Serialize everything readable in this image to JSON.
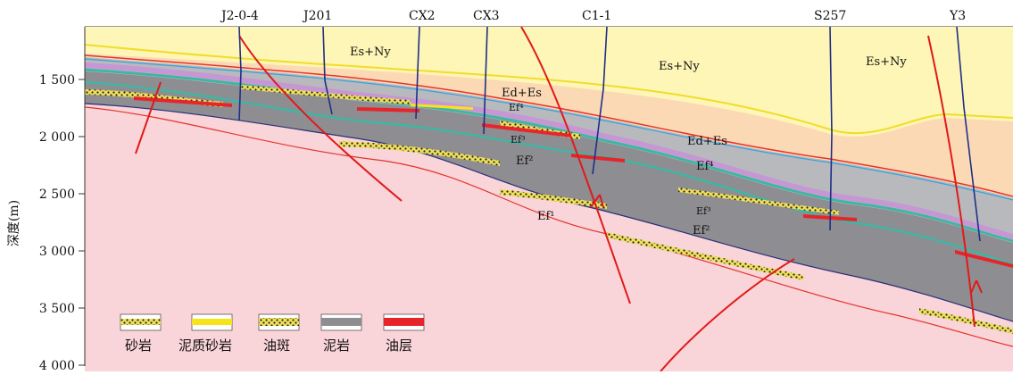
{
  "wells": [
    {
      "id": "w1",
      "label": "J2-0-4"
    },
    {
      "id": "w2",
      "label": "J201"
    },
    {
      "id": "w3",
      "label": "CX2"
    },
    {
      "id": "w4",
      "label": "CX3"
    },
    {
      "id": "w5",
      "label": "C1-1"
    },
    {
      "id": "w6",
      "label": "S257"
    },
    {
      "id": "w7",
      "label": "Y3"
    }
  ],
  "depth_axis": {
    "label": "深度(m)",
    "ticks": [
      "1 500",
      "2 000",
      "2 500",
      "3 000",
      "3 500",
      "4 000"
    ]
  },
  "formations": {
    "es_ny_1": "Es+Ny",
    "es_ny_2": "Es+Ny",
    "es_ny_3": "Es+Ny",
    "ed_es_1": "Ed+Es",
    "ed_es_2": "Ed+Es",
    "ef4_1": "Ef⁴",
    "ef3_1": "Ef³",
    "ef2_1": "Ef²",
    "ef1_1": "Ef¹",
    "ef4_2": "Ef⁴",
    "ef3_2": "Ef³",
    "ef2_2": "Ef²"
  },
  "legend": [
    {
      "id": "sandstone",
      "label": "砂岩"
    },
    {
      "id": "muddy-sandstone",
      "label": "泥质砂岩"
    },
    {
      "id": "oil-spot",
      "label": "油斑"
    },
    {
      "id": "mudstone",
      "label": "泥岩"
    },
    {
      "id": "oil-layer",
      "label": "油层"
    }
  ],
  "colors": {
    "es_ny": "#fdf6b6",
    "ed_es": "#fbd9b5",
    "ef4": "#b8b9bd",
    "ef2": "#8e8d91",
    "ef1": "#f9d4d8",
    "teal": "#3fb6a3",
    "purple": "#c98fd8",
    "fault": "#e01a1a",
    "well": "#1f2f86",
    "sand": "#f1e47a",
    "oil": "#e8242b"
  }
}
